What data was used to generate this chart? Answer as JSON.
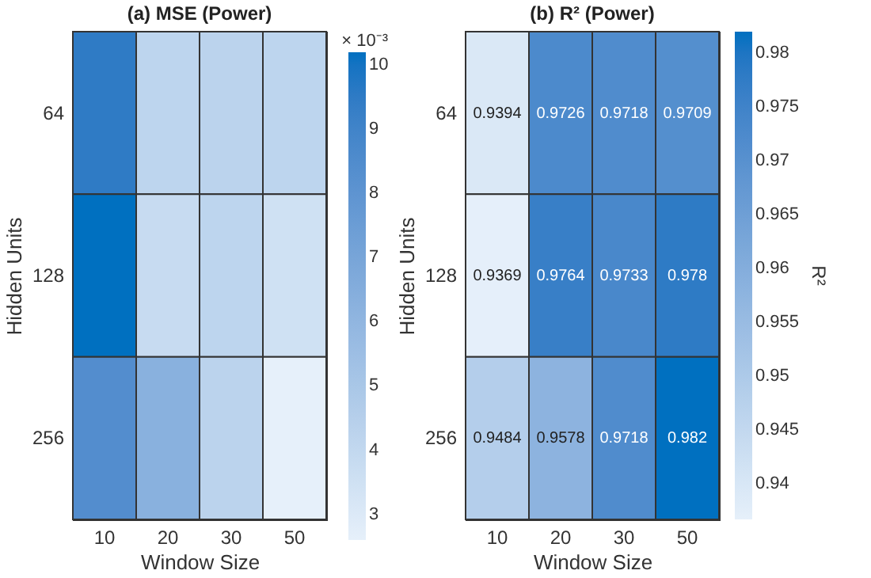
{
  "chart_data": [
    {
      "type": "heatmap",
      "title": "(a) MSE (Power)",
      "xlabel": "Window Size",
      "ylabel": "Hidden Units",
      "clabel": "× 10⁻³",
      "categories": [
        "10",
        "20",
        "30",
        "50"
      ],
      "y_categories": [
        "64",
        "128",
        "256"
      ],
      "cells": [
        [
          9.5,
          4.2,
          4.3,
          4.2
        ],
        [
          10.2,
          3.8,
          4.2,
          3.5
        ],
        [
          8.4,
          6.3,
          4.3,
          2.6
        ]
      ],
      "clim": [
        2.6,
        10.2
      ],
      "cticks": [
        3,
        4,
        5,
        6,
        7,
        8,
        9,
        10
      ]
    },
    {
      "type": "heatmap",
      "title": "(b) R² (Power)",
      "xlabel": "Window Size",
      "ylabel": "Hidden Units",
      "clabel": "R²",
      "categories": [
        "10",
        "20",
        "30",
        "50"
      ],
      "y_categories": [
        "64",
        "128",
        "256"
      ],
      "cells": [
        [
          0.9394,
          0.9726,
          0.9718,
          0.9709
        ],
        [
          0.9369,
          0.9764,
          0.9733,
          0.978
        ],
        [
          0.9484,
          0.9578,
          0.9718,
          0.982
        ]
      ],
      "clim": [
        0.9367,
        0.982
      ],
      "cticks": [
        0.94,
        0.945,
        0.95,
        0.955,
        0.96,
        0.965,
        0.97,
        0.975,
        0.98
      ],
      "data_labels": true
    }
  ]
}
